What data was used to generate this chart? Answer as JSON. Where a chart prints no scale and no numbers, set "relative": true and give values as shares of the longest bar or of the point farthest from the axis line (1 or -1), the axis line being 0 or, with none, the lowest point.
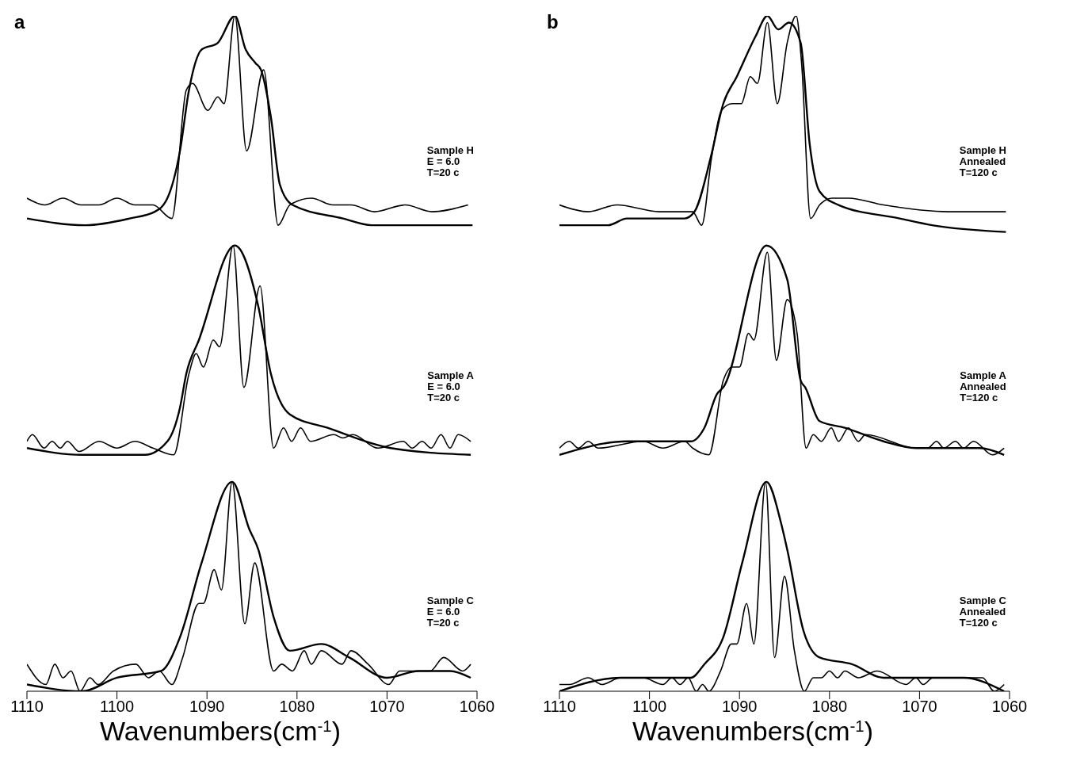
{
  "chart_data": [
    {
      "type": "line",
      "title": "a",
      "xlabel": "Wavenumbers(cm$^{-1}$)",
      "relative": true,
      "xlim": [
        1110,
        1060
      ],
      "xticks": [
        1110,
        1100,
        1090,
        1080,
        1070,
        1060
      ],
      "annotations": [
        "Sample H\nE = 6.0\nT=20 c",
        "Sample A\nE = 6.0\nT=20 c",
        "Sample C\nE = 6.0\nT=20 c"
      ],
      "series": [
        {
          "color": "#000000",
          "x": [
            1110,
            1103.5,
            1098.6,
            1095.8,
            1094.4,
            1093.0,
            1092.0,
            1090.6,
            1088.8,
            1086.9,
            1085.7,
            1084.6,
            1084.0,
            1082.9,
            1081.9,
            1080.5,
            1074.9,
            1071.7,
            1060.5
          ],
          "values": [
            0.7,
            0.69,
            0.7,
            0.71,
            0.73,
            0.8,
            0.89,
            0.95,
            0.96,
            1.0,
            0.95,
            0.93,
            0.92,
            0.85,
            0.75,
            0.72,
            0.7,
            0.69,
            0.69
          ]
        },
        {
          "color": "#000000",
          "x": [
            1110,
            1108,
            1106,
            1104,
            1102,
            1100,
            1098,
            1096,
            1093.9,
            1092.3,
            1091.6,
            1089.9,
            1088.8,
            1088.1,
            1086.9,
            1085.6,
            1083.7,
            1082.1,
            1080.8,
            1078.4,
            1076,
            1074,
            1071.4,
            1068,
            1065,
            1061
          ],
          "values": [
            0.73,
            0.72,
            0.73,
            0.72,
            0.72,
            0.73,
            0.72,
            0.72,
            0.7,
            0.89,
            0.9,
            0.86,
            0.88,
            0.87,
            1.0,
            0.8,
            0.92,
            0.69,
            0.72,
            0.73,
            0.72,
            0.72,
            0.71,
            0.72,
            0.71,
            0.72
          ]
        },
        {
          "color": "#000000",
          "x": [
            1110,
            1103.9,
            1096.9,
            1094.4,
            1093.0,
            1092.3,
            1090.9,
            1086.9,
            1084.3,
            1082.9,
            1080.8,
            1076.6,
            1069.6,
            1060.7
          ],
          "values": [
            0.36,
            0.35,
            0.35,
            0.37,
            0.42,
            0.47,
            0.52,
            0.66,
            0.57,
            0.47,
            0.41,
            0.39,
            0.36,
            0.35
          ]
        },
        {
          "color": "#000000",
          "x": [
            1110,
            1109.4,
            1108.1,
            1107.2,
            1106.3,
            1105.5,
            1104.2,
            1102,
            1100,
            1098,
            1096,
            1093.7,
            1092.0,
            1091.2,
            1090.4,
            1089.3,
            1088.6,
            1087.1,
            1085.9,
            1084.1,
            1082.6,
            1081.5,
            1080.6,
            1079.6,
            1078.5,
            1075.9,
            1074.9,
            1073.8,
            1071.0,
            1068.2,
            1067.2,
            1066.1,
            1065.1,
            1064.0,
            1063.0,
            1062.1,
            1060.7
          ],
          "values": [
            0.37,
            0.38,
            0.36,
            0.37,
            0.36,
            0.37,
            0.355,
            0.37,
            0.36,
            0.37,
            0.36,
            0.35,
            0.47,
            0.5,
            0.48,
            0.52,
            0.51,
            0.66,
            0.45,
            0.6,
            0.36,
            0.39,
            0.37,
            0.39,
            0.37,
            0.38,
            0.375,
            0.38,
            0.36,
            0.37,
            0.36,
            0.37,
            0.36,
            0.38,
            0.36,
            0.38,
            0.37
          ]
        },
        {
          "color": "#000000",
          "x": [
            1110,
            1103.9,
            1100.0,
            1095.1,
            1093.0,
            1090.6,
            1087.2,
            1085.3,
            1084.3,
            1082.6,
            1080.8,
            1077.3,
            1074.2,
            1070.0,
            1066.5,
            1063.0,
            1060.7
          ],
          "values": [
            0.01,
            0.0,
            0.02,
            0.03,
            0.08,
            0.19,
            0.31,
            0.24,
            0.21,
            0.11,
            0.06,
            0.07,
            0.05,
            0.02,
            0.03,
            0.03,
            0.02
          ]
        },
        {
          "color": "#000000",
          "x": [
            1110,
            1107.9,
            1106.9,
            1106.0,
            1105.1,
            1104.1,
            1103.0,
            1102.1,
            1100.4,
            1097.9,
            1096.5,
            1095.3,
            1093.9,
            1092.7,
            1090.9,
            1090.4,
            1089.2,
            1088.4,
            1087.2,
            1085.8,
            1084.7,
            1082.6,
            1081.7,
            1080.5,
            1079.2,
            1078.4,
            1077.3,
            1075.0,
            1074.0,
            1072.1,
            1069.8,
            1068.6,
            1065.2,
            1063.7,
            1061.6,
            1060.7
          ],
          "values": [
            0.04,
            0.01,
            0.04,
            0.02,
            0.03,
            0.0,
            0.02,
            0.01,
            0.03,
            0.04,
            0.02,
            0.03,
            0.01,
            0.05,
            0.13,
            0.13,
            0.18,
            0.15,
            0.31,
            0.1,
            0.19,
            0.03,
            0.04,
            0.03,
            0.06,
            0.04,
            0.06,
            0.04,
            0.06,
            0.04,
            0.01,
            0.03,
            0.03,
            0.05,
            0.03,
            0.04
          ]
        }
      ]
    },
    {
      "type": "line",
      "title": "b",
      "xlabel": "Wavenumbers(cm$^{-1}$)",
      "relative": true,
      "xlim": [
        1110,
        1060
      ],
      "xticks": [
        1110,
        1100,
        1090,
        1080,
        1070,
        1060
      ],
      "annotations": [
        "Sample H\nAnnealed\nT=120 c",
        "Sample A\nAnnealed\nT=120 c",
        "Sample C\nAnnealed\nT=120 c"
      ],
      "series": [
        {
          "color": "#000000",
          "x": [
            1110,
            1104.6,
            1102.5,
            1096.1,
            1095.0,
            1093.2,
            1091.8,
            1090.3,
            1088.2,
            1086.9,
            1085.7,
            1084.5,
            1083.2,
            1082.2,
            1081.1,
            1079.0,
            1072.2,
            1068.6,
            1060.4
          ],
          "values": [
            0.69,
            0.69,
            0.7,
            0.7,
            0.71,
            0.79,
            0.87,
            0.91,
            0.97,
            1.0,
            0.98,
            0.99,
            0.96,
            0.81,
            0.74,
            0.72,
            0.7,
            0.69,
            0.68
          ]
        },
        {
          "color": "#000000",
          "x": [
            1110,
            1106.8,
            1103.6,
            1098.9,
            1096.4,
            1095.2,
            1094.2,
            1093.1,
            1092.0,
            1090.8,
            1089.8,
            1088.8,
            1088.0,
            1086.9,
            1085.8,
            1084.7,
            1083.7,
            1083.1,
            1082.1,
            1081.1,
            1079.7,
            1077.9,
            1074.0,
            1066.8,
            1060.4
          ],
          "values": [
            0.72,
            0.71,
            0.72,
            0.71,
            0.71,
            0.71,
            0.69,
            0.79,
            0.86,
            0.87,
            0.87,
            0.91,
            0.9,
            0.99,
            0.87,
            0.96,
            1.0,
            0.93,
            0.7,
            0.72,
            0.73,
            0.73,
            0.72,
            0.71,
            0.71
          ]
        },
        {
          "color": "#000000",
          "x": [
            1110,
            1102.5,
            1095.4,
            1093.9,
            1092.5,
            1091.8,
            1087.0,
            1084.7,
            1083.2,
            1082.7,
            1081.1,
            1078.3,
            1074.0,
            1070.4,
            1063.3,
            1060.6
          ],
          "values": [
            0.35,
            0.37,
            0.37,
            0.39,
            0.44,
            0.45,
            0.66,
            0.61,
            0.46,
            0.45,
            0.4,
            0.39,
            0.37,
            0.36,
            0.36,
            0.35
          ]
        },
        {
          "color": "#000000",
          "x": [
            1110,
            1108.9,
            1107.9,
            1106.8,
            1105.7,
            1100.7,
            1098.5,
            1096.1,
            1095.2,
            1093.4,
            1091.8,
            1090.8,
            1090.0,
            1089.0,
            1088.4,
            1086.9,
            1085.9,
            1084.7,
            1083.6,
            1082.6,
            1081.8,
            1080.9,
            1079.8,
            1079.0,
            1077.9,
            1076.8,
            1076.0,
            1070.4,
            1069.1,
            1068.1,
            1067.3,
            1066.0,
            1065.1,
            1064.0,
            1061.9,
            1060.6
          ],
          "values": [
            0.36,
            0.37,
            0.36,
            0.37,
            0.36,
            0.37,
            0.36,
            0.37,
            0.36,
            0.35,
            0.46,
            0.48,
            0.48,
            0.53,
            0.52,
            0.65,
            0.49,
            0.58,
            0.53,
            0.36,
            0.38,
            0.37,
            0.39,
            0.37,
            0.39,
            0.37,
            0.38,
            0.36,
            0.36,
            0.37,
            0.36,
            0.37,
            0.36,
            0.37,
            0.35,
            0.36
          ]
        },
        {
          "color": "#000000",
          "x": [
            1110,
            1103.2,
            1095.4,
            1093.9,
            1091.8,
            1089.7,
            1087.0,
            1085.4,
            1084.7,
            1082.9,
            1081.1,
            1077.5,
            1074.0,
            1070.4,
            1065.1,
            1060.6
          ],
          "values": [
            0.0,
            0.02,
            0.02,
            0.04,
            0.08,
            0.19,
            0.31,
            0.25,
            0.21,
            0.09,
            0.05,
            0.04,
            0.02,
            0.02,
            0.02,
            0.0
          ]
        },
        {
          "color": "#000000",
          "x": [
            1110,
            1108.9,
            1106.8,
            1105.3,
            1103.2,
            1100.7,
            1098.5,
            1097.5,
            1096.6,
            1095.7,
            1094.8,
            1094.1,
            1093.4,
            1092.1,
            1090.9,
            1090.3,
            1089.2,
            1088.4,
            1087.1,
            1086.1,
            1085.0,
            1083.9,
            1082.8,
            1081.8,
            1080.9,
            1080.0,
            1079.1,
            1078.3,
            1076.8,
            1074.7,
            1071.5,
            1070.4,
            1069.6,
            1068.5,
            1066.5,
            1063.0,
            1061.7,
            1060.6
          ],
          "values": [
            0.01,
            0.01,
            0.02,
            0.01,
            0.02,
            0.02,
            0.01,
            0.02,
            0.01,
            0.02,
            0.0,
            0.01,
            0.0,
            0.03,
            0.07,
            0.07,
            0.13,
            0.07,
            0.31,
            0.05,
            0.17,
            0.06,
            0.0,
            0.02,
            0.02,
            0.03,
            0.02,
            0.03,
            0.02,
            0.03,
            0.01,
            0.02,
            0.01,
            0.02,
            0.02,
            0.02,
            0.0,
            0.01
          ]
        }
      ]
    }
  ]
}
